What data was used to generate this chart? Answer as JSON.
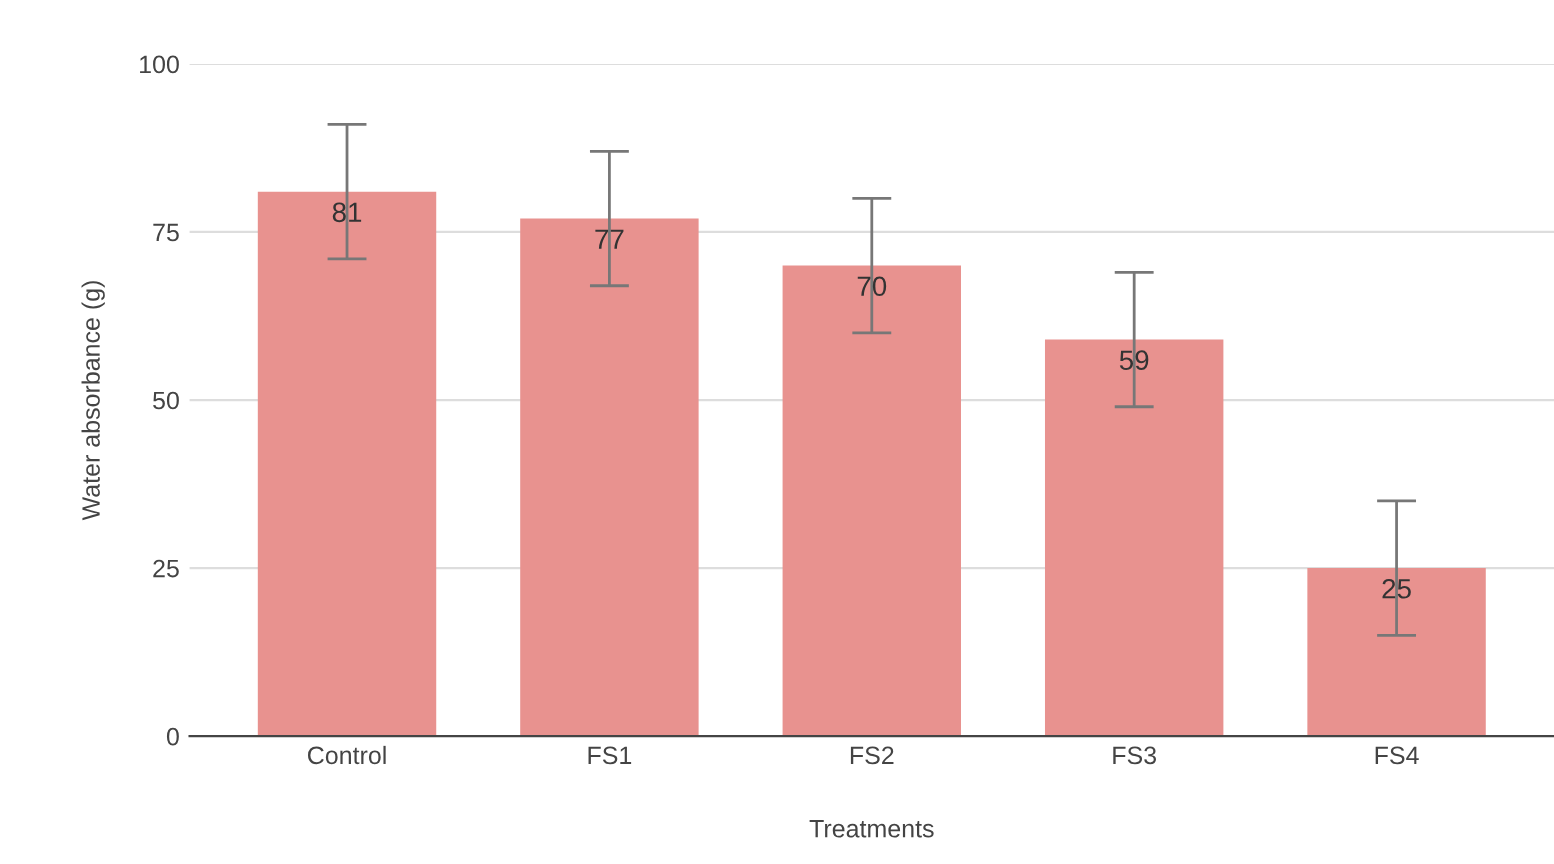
{
  "chart_data": {
    "type": "bar",
    "xlabel": "Treatments",
    "ylabel": "Water absorbance (g)",
    "categories": [
      "Control",
      "FS1",
      "FS2",
      "FS3",
      "FS4"
    ],
    "values": [
      81,
      77,
      70,
      59,
      25
    ],
    "errors": [
      10,
      10,
      10,
      10,
      10
    ],
    "color": "#e8928f",
    "ylim": [
      0,
      100
    ],
    "yticks": [
      0,
      25,
      50,
      75,
      100
    ],
    "grid": "y",
    "data_labels": true
  }
}
